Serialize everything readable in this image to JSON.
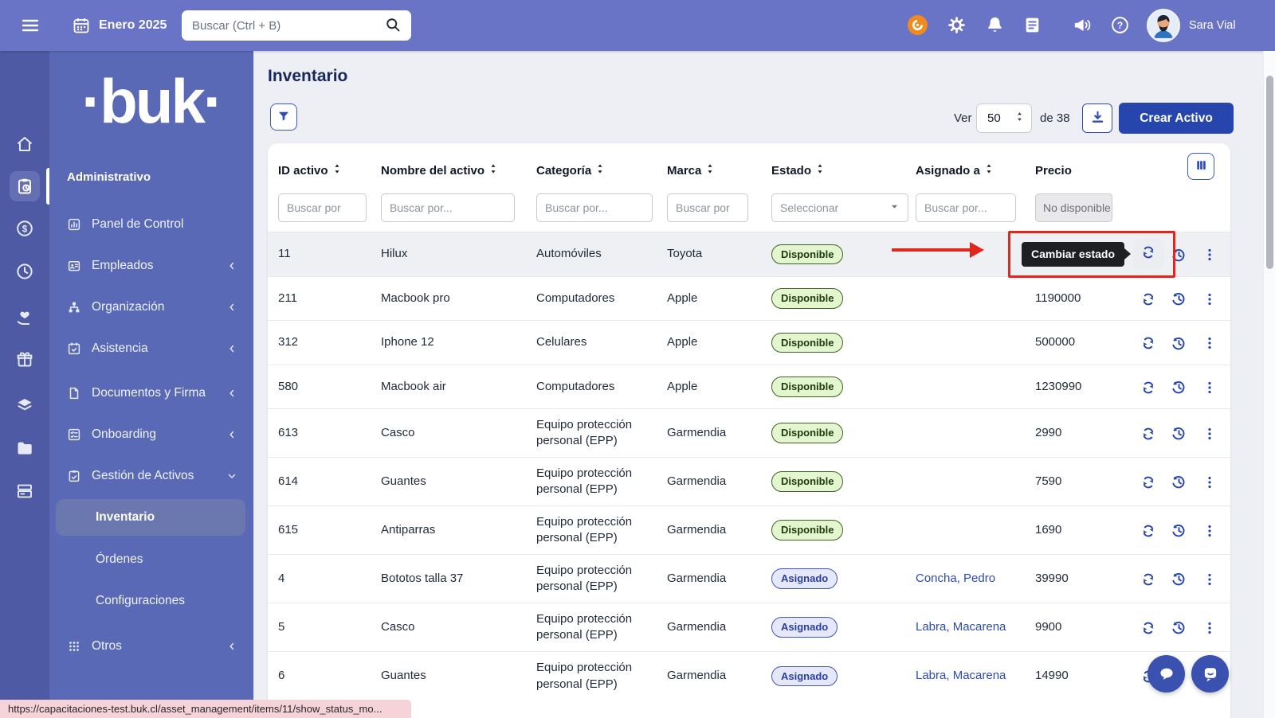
{
  "topbar": {
    "date_label": "Enero 2025",
    "search_placeholder": "Buscar (Ctrl + B)",
    "user_name": "Sara Vial"
  },
  "sidebar": {
    "logo_text": "·buk·",
    "section_label": "Administrativo",
    "items": [
      {
        "label": "Panel de Control",
        "icon": "bar-chart-icon",
        "chevron": ""
      },
      {
        "label": "Empleados",
        "icon": "id-badge-icon",
        "chevron": "left"
      },
      {
        "label": "Organización",
        "icon": "org-chart-icon",
        "chevron": "left"
      },
      {
        "label": "Asistencia",
        "icon": "calendar-check-icon",
        "chevron": "left"
      },
      {
        "label": "Documentos y Firma",
        "icon": "document-icon",
        "chevron": "left"
      },
      {
        "label": "Onboarding",
        "icon": "list-check-icon",
        "chevron": "left"
      },
      {
        "label": "Gestión de Activos",
        "icon": "clipboard-check-icon",
        "chevron": "down",
        "expanded": true
      },
      {
        "label": "Otros",
        "icon": "grid-icon",
        "chevron": "left"
      }
    ],
    "subitems": [
      {
        "label": "Inventario",
        "active": true
      },
      {
        "label": "Órdenes",
        "active": false
      },
      {
        "label": "Configuraciones",
        "active": false
      }
    ]
  },
  "main": {
    "title": "Inventario",
    "toolbar": {
      "ver_label": "Ver",
      "page_size": "50",
      "total_label": "de 38",
      "create_button": "Crear Activo"
    },
    "table": {
      "columns": [
        {
          "label": "ID activo",
          "sortable": true,
          "filter": {
            "type": "text",
            "placeholder": "Buscar por"
          }
        },
        {
          "label": "Nombre del activo",
          "sortable": true,
          "filter": {
            "type": "text",
            "placeholder": "Buscar por..."
          }
        },
        {
          "label": "Categoría",
          "sortable": true,
          "filter": {
            "type": "text",
            "placeholder": "Buscar por..."
          }
        },
        {
          "label": "Marca",
          "sortable": true,
          "filter": {
            "type": "text",
            "placeholder": "Buscar por"
          }
        },
        {
          "label": "Estado",
          "sortable": true,
          "filter": {
            "type": "select",
            "placeholder": "Seleccionar"
          }
        },
        {
          "label": "Asignado a",
          "sortable": true,
          "filter": {
            "type": "text",
            "placeholder": "Buscar por..."
          }
        },
        {
          "label": "Precio",
          "sortable": false,
          "filter": {
            "type": "disabled",
            "placeholder": "No disponible"
          }
        }
      ],
      "rows": [
        {
          "id": "11",
          "name": "Hilux",
          "category": "Automóviles",
          "brand": "Toyota",
          "status": "Disponible",
          "status_type": "disponible",
          "assigned": "",
          "price": "",
          "annotated": true
        },
        {
          "id": "211",
          "name": "Macbook pro",
          "category": "Computadores",
          "brand": "Apple",
          "status": "Disponible",
          "status_type": "disponible",
          "assigned": "",
          "price": "1190000"
        },
        {
          "id": "312",
          "name": "Iphone 12",
          "category": "Celulares",
          "brand": "Apple",
          "status": "Disponible",
          "status_type": "disponible",
          "assigned": "",
          "price": "500000"
        },
        {
          "id": "580",
          "name": "Macbook air",
          "category": "Computadores",
          "brand": "Apple",
          "status": "Disponible",
          "status_type": "disponible",
          "assigned": "",
          "price": "1230990"
        },
        {
          "id": "613",
          "name": "Casco",
          "category": "Equipo protección personal (EPP)",
          "brand": "Garmendia",
          "status": "Disponible",
          "status_type": "disponible",
          "assigned": "",
          "price": "2990"
        },
        {
          "id": "614",
          "name": "Guantes",
          "category": "Equipo protección personal (EPP)",
          "brand": "Garmendia",
          "status": "Disponible",
          "status_type": "disponible",
          "assigned": "",
          "price": "7590"
        },
        {
          "id": "615",
          "name": "Antiparras",
          "category": "Equipo protección personal (EPP)",
          "brand": "Garmendia",
          "status": "Disponible",
          "status_type": "disponible",
          "assigned": "",
          "price": "1690"
        },
        {
          "id": "4",
          "name": "Bototos talla 37",
          "category": "Equipo protección personal (EPP)",
          "brand": "Garmendia",
          "status": "Asignado",
          "status_type": "asignado",
          "assigned": "Concha, Pedro",
          "price": "39990"
        },
        {
          "id": "5",
          "name": "Casco",
          "category": "Equipo protección personal (EPP)",
          "brand": "Garmendia",
          "status": "Asignado",
          "status_type": "asignado",
          "assigned": "Labra, Macarena",
          "price": "9900"
        },
        {
          "id": "6",
          "name": "Guantes",
          "category": "Equipo protección personal (EPP)",
          "brand": "Garmendia",
          "status": "Asignado",
          "status_type": "asignado",
          "assigned": "Labra, Macarena",
          "price": "14990"
        }
      ]
    }
  },
  "annotation": {
    "tooltip_text": "Cambiar estado"
  },
  "statusbar": {
    "url": "https://capacitaciones-test.buk.cl/asset_management/items/11/show_status_mo..."
  },
  "colors": {
    "topbar": "#6974c6",
    "rail": "#4e5aa4",
    "sidebar": "#5a69b6",
    "accent_blue": "#2d4cb2",
    "primary_button": "#2746ad",
    "badge_available_bg": "#e3f6d0",
    "badge_assigned_bg": "#e4e8f9",
    "annotation_red": "#e3261b",
    "tooltip_bg": "#1e1f22"
  }
}
